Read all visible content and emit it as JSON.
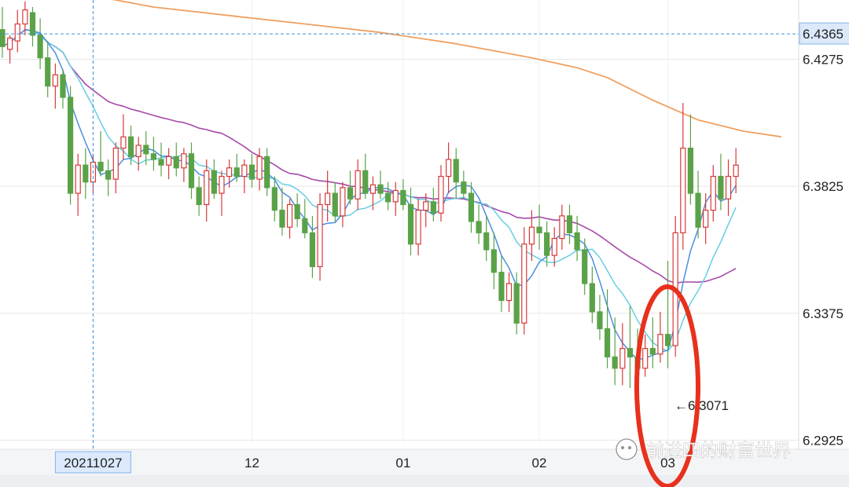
{
  "chart_data": {
    "type": "candlestick",
    "title": "",
    "y_ticks": [
      "6.4275",
      "6.3825",
      "6.3375",
      "6.2925"
    ],
    "ylim": [
      6.2915,
      6.4485
    ],
    "crosshair": {
      "price_label": "6.4365",
      "date_label": "20211027"
    },
    "x_ticks": [
      "12",
      "01",
      "02",
      "03"
    ],
    "low_annotation": "←6.3071",
    "annotation_highlight": "circled low near 03",
    "colors": {
      "up": "#d9383a",
      "down": "#5aa248",
      "ma5": "#4b8fe0",
      "ma10": "#66cfe0",
      "ma30": "#a64aa8",
      "ma250": "#f0a060",
      "highlight": "#e8301c"
    },
    "candles": [
      {
        "o": 6.438,
        "h": 6.446,
        "l": 6.428,
        "c": 6.432
      },
      {
        "o": 6.431,
        "h": 6.436,
        "l": 6.426,
        "c": 6.435
      },
      {
        "o": 6.434,
        "h": 6.445,
        "l": 6.43,
        "c": 6.44
      },
      {
        "o": 6.44,
        "h": 6.448,
        "l": 6.436,
        "c": 6.445
      },
      {
        "o": 6.444,
        "h": 6.446,
        "l": 6.432,
        "c": 6.436
      },
      {
        "o": 6.436,
        "h": 6.442,
        "l": 6.424,
        "c": 6.428
      },
      {
        "o": 6.428,
        "h": 6.434,
        "l": 6.414,
        "c": 6.418
      },
      {
        "o": 6.418,
        "h": 6.426,
        "l": 6.41,
        "c": 6.422
      },
      {
        "o": 6.422,
        "h": 6.424,
        "l": 6.41,
        "c": 6.414
      },
      {
        "o": 6.414,
        "h": 6.418,
        "l": 6.376,
        "c": 6.38
      },
      {
        "o": 6.38,
        "h": 6.394,
        "l": 6.372,
        "c": 6.39
      },
      {
        "o": 6.39,
        "h": 6.396,
        "l": 6.378,
        "c": 6.384
      },
      {
        "o": 6.384,
        "h": 6.394,
        "l": 6.38,
        "c": 6.391
      },
      {
        "o": 6.391,
        "h": 6.402,
        "l": 6.386,
        "c": 6.388
      },
      {
        "o": 6.388,
        "h": 6.392,
        "l": 6.379,
        "c": 6.385
      },
      {
        "o": 6.385,
        "h": 6.398,
        "l": 6.38,
        "c": 6.396
      },
      {
        "o": 6.396,
        "h": 6.408,
        "l": 6.392,
        "c": 6.4
      },
      {
        "o": 6.4,
        "h": 6.404,
        "l": 6.39,
        "c": 6.393
      },
      {
        "o": 6.393,
        "h": 6.4,
        "l": 6.388,
        "c": 6.397
      },
      {
        "o": 6.397,
        "h": 6.402,
        "l": 6.39,
        "c": 6.394
      },
      {
        "o": 6.394,
        "h": 6.4,
        "l": 6.388,
        "c": 6.392
      },
      {
        "o": 6.392,
        "h": 6.398,
        "l": 6.386,
        "c": 6.39
      },
      {
        "o": 6.39,
        "h": 6.396,
        "l": 6.385,
        "c": 6.393
      },
      {
        "o": 6.393,
        "h": 6.398,
        "l": 6.386,
        "c": 6.389
      },
      {
        "o": 6.389,
        "h": 6.396,
        "l": 6.384,
        "c": 6.394
      },
      {
        "o": 6.394,
        "h": 6.398,
        "l": 6.378,
        "c": 6.382
      },
      {
        "o": 6.382,
        "h": 6.386,
        "l": 6.372,
        "c": 6.376
      },
      {
        "o": 6.376,
        "h": 6.392,
        "l": 6.37,
        "c": 6.388
      },
      {
        "o": 6.388,
        "h": 6.392,
        "l": 6.378,
        "c": 6.38
      },
      {
        "o": 6.38,
        "h": 6.388,
        "l": 6.372,
        "c": 6.386
      },
      {
        "o": 6.386,
        "h": 6.392,
        "l": 6.382,
        "c": 6.389
      },
      {
        "o": 6.389,
        "h": 6.394,
        "l": 6.384,
        "c": 6.386
      },
      {
        "o": 6.386,
        "h": 6.392,
        "l": 6.38,
        "c": 6.39
      },
      {
        "o": 6.39,
        "h": 6.394,
        "l": 6.382,
        "c": 6.385
      },
      {
        "o": 6.385,
        "h": 6.396,
        "l": 6.381,
        "c": 6.393
      },
      {
        "o": 6.393,
        "h": 6.396,
        "l": 6.379,
        "c": 6.382
      },
      {
        "o": 6.382,
        "h": 6.386,
        "l": 6.37,
        "c": 6.374
      },
      {
        "o": 6.374,
        "h": 6.382,
        "l": 6.365,
        "c": 6.368
      },
      {
        "o": 6.368,
        "h": 6.378,
        "l": 6.364,
        "c": 6.376
      },
      {
        "o": 6.376,
        "h": 6.38,
        "l": 6.368,
        "c": 6.371
      },
      {
        "o": 6.371,
        "h": 6.378,
        "l": 6.364,
        "c": 6.366
      },
      {
        "o": 6.366,
        "h": 6.372,
        "l": 6.35,
        "c": 6.354
      },
      {
        "o": 6.354,
        "h": 6.38,
        "l": 6.349,
        "c": 6.376
      },
      {
        "o": 6.376,
        "h": 6.388,
        "l": 6.37,
        "c": 6.38
      },
      {
        "o": 6.38,
        "h": 6.384,
        "l": 6.37,
        "c": 6.372
      },
      {
        "o": 6.372,
        "h": 6.384,
        "l": 6.368,
        "c": 6.382
      },
      {
        "o": 6.382,
        "h": 6.388,
        "l": 6.376,
        "c": 6.378
      },
      {
        "o": 6.378,
        "h": 6.392,
        "l": 6.374,
        "c": 6.388
      },
      {
        "o": 6.388,
        "h": 6.394,
        "l": 6.378,
        "c": 6.38
      },
      {
        "o": 6.38,
        "h": 6.386,
        "l": 6.374,
        "c": 6.383
      },
      {
        "o": 6.383,
        "h": 6.388,
        "l": 6.378,
        "c": 6.38
      },
      {
        "o": 6.38,
        "h": 6.384,
        "l": 6.374,
        "c": 6.377
      },
      {
        "o": 6.377,
        "h": 6.384,
        "l": 6.372,
        "c": 6.381
      },
      {
        "o": 6.381,
        "h": 6.385,
        "l": 6.374,
        "c": 6.376
      },
      {
        "o": 6.376,
        "h": 6.382,
        "l": 6.358,
        "c": 6.362
      },
      {
        "o": 6.362,
        "h": 6.378,
        "l": 6.358,
        "c": 6.374
      },
      {
        "o": 6.374,
        "h": 6.38,
        "l": 6.368,
        "c": 6.377
      },
      {
        "o": 6.377,
        "h": 6.382,
        "l": 6.37,
        "c": 6.373
      },
      {
        "o": 6.373,
        "h": 6.39,
        "l": 6.37,
        "c": 6.386
      },
      {
        "o": 6.386,
        "h": 6.398,
        "l": 6.38,
        "c": 6.392
      },
      {
        "o": 6.392,
        "h": 6.396,
        "l": 6.378,
        "c": 6.384
      },
      {
        "o": 6.384,
        "h": 6.388,
        "l": 6.378,
        "c": 6.38
      },
      {
        "o": 6.38,
        "h": 6.384,
        "l": 6.366,
        "c": 6.37
      },
      {
        "o": 6.37,
        "h": 6.376,
        "l": 6.362,
        "c": 6.366
      },
      {
        "o": 6.366,
        "h": 6.372,
        "l": 6.356,
        "c": 6.36
      },
      {
        "o": 6.36,
        "h": 6.366,
        "l": 6.346,
        "c": 6.352
      },
      {
        "o": 6.352,
        "h": 6.358,
        "l": 6.338,
        "c": 6.342
      },
      {
        "o": 6.342,
        "h": 6.352,
        "l": 6.338,
        "c": 6.348
      },
      {
        "o": 6.348,
        "h": 6.352,
        "l": 6.33,
        "c": 6.334
      },
      {
        "o": 6.334,
        "h": 6.368,
        "l": 6.33,
        "c": 6.362
      },
      {
        "o": 6.362,
        "h": 6.374,
        "l": 6.356,
        "c": 6.368
      },
      {
        "o": 6.368,
        "h": 6.376,
        "l": 6.36,
        "c": 6.366
      },
      {
        "o": 6.366,
        "h": 6.37,
        "l": 6.354,
        "c": 6.358
      },
      {
        "o": 6.358,
        "h": 6.368,
        "l": 6.354,
        "c": 6.364
      },
      {
        "o": 6.364,
        "h": 6.376,
        "l": 6.36,
        "c": 6.372
      },
      {
        "o": 6.372,
        "h": 6.376,
        "l": 6.362,
        "c": 6.366
      },
      {
        "o": 6.366,
        "h": 6.372,
        "l": 6.356,
        "c": 6.36
      },
      {
        "o": 6.36,
        "h": 6.364,
        "l": 6.344,
        "c": 6.348
      },
      {
        "o": 6.348,
        "h": 6.354,
        "l": 6.334,
        "c": 6.338
      },
      {
        "o": 6.338,
        "h": 6.344,
        "l": 6.328,
        "c": 6.332
      },
      {
        "o": 6.332,
        "h": 6.346,
        "l": 6.318,
        "c": 6.322
      },
      {
        "o": 6.322,
        "h": 6.336,
        "l": 6.312,
        "c": 6.318
      },
      {
        "o": 6.318,
        "h": 6.334,
        "l": 6.312,
        "c": 6.325
      },
      {
        "o": 6.325,
        "h": 6.34,
        "l": 6.311,
        "c": 6.322
      },
      {
        "o": 6.322,
        "h": 6.332,
        "l": 6.314,
        "c": 6.318
      },
      {
        "o": 6.318,
        "h": 6.33,
        "l": 6.315,
        "c": 6.325
      },
      {
        "o": 6.325,
        "h": 6.336,
        "l": 6.318,
        "c": 6.323
      },
      {
        "o": 6.323,
        "h": 6.338,
        "l": 6.32,
        "c": 6.33
      },
      {
        "o": 6.33,
        "h": 6.356,
        "l": 6.318,
        "c": 6.326
      },
      {
        "o": 6.326,
        "h": 6.372,
        "l": 6.322,
        "c": 6.366
      },
      {
        "o": 6.366,
        "h": 6.412,
        "l": 6.36,
        "c": 6.396
      },
      {
        "o": 6.396,
        "h": 6.408,
        "l": 6.376,
        "c": 6.38
      },
      {
        "o": 6.38,
        "h": 6.388,
        "l": 6.364,
        "c": 6.368
      },
      {
        "o": 6.368,
        "h": 6.38,
        "l": 6.362,
        "c": 6.374
      },
      {
        "o": 6.374,
        "h": 6.39,
        "l": 6.37,
        "c": 6.386
      },
      {
        "o": 6.386,
        "h": 6.394,
        "l": 6.374,
        "c": 6.378
      },
      {
        "o": 6.378,
        "h": 6.392,
        "l": 6.372,
        "c": 6.386
      },
      {
        "o": 6.386,
        "h": 6.396,
        "l": 6.38,
        "c": 6.39
      }
    ],
    "ma250": [
      [
        0,
        6.459
      ],
      [
        10,
        6.451
      ],
      [
        20,
        6.446
      ],
      [
        30,
        6.443
      ],
      [
        40,
        6.44
      ],
      [
        50,
        6.437
      ],
      [
        60,
        6.433
      ],
      [
        70,
        6.428
      ],
      [
        76,
        6.4245
      ],
      [
        80,
        6.421
      ],
      [
        86,
        6.413
      ],
      [
        92,
        6.406
      ],
      [
        98,
        6.402
      ],
      [
        103,
        6.4
      ]
    ]
  }
}
